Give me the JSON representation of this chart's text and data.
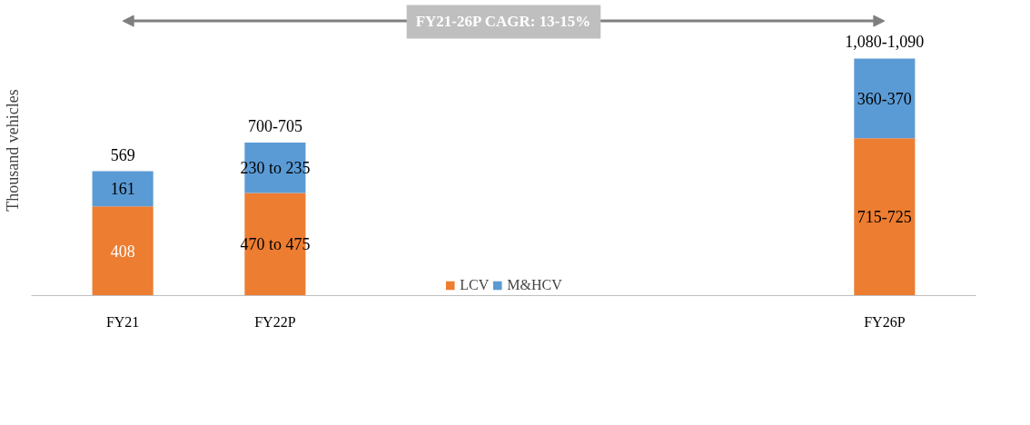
{
  "chart_data": {
    "type": "bar",
    "stacked": true,
    "ylabel": "Thousand vehicles",
    "categories": [
      "FY21",
      "FY22P",
      null,
      null,
      null,
      "FY26P"
    ],
    "series": [
      {
        "name": "LCV",
        "color": "#ed7d31",
        "values": [
          408,
          470,
          null,
          null,
          null,
          720
        ],
        "value_labels": [
          "408",
          "470 to 475",
          null,
          null,
          null,
          "715-725"
        ]
      },
      {
        "name": "M&HCV",
        "color": "#5b9bd5",
        "values": [
          161,
          230,
          null,
          null,
          null,
          365
        ],
        "value_labels": [
          "161",
          "230 to 235",
          null,
          null,
          null,
          "360-370"
        ]
      }
    ],
    "totals": [
      "569",
      "700-705",
      null,
      null,
      null,
      "1,080-1,090"
    ],
    "ylim": [
      0,
      1330
    ],
    "tick_labels": "x",
    "grid": false,
    "legend": "bottom",
    "annotations": [
      "FY21-26P CAGR: 13-15%"
    ]
  }
}
